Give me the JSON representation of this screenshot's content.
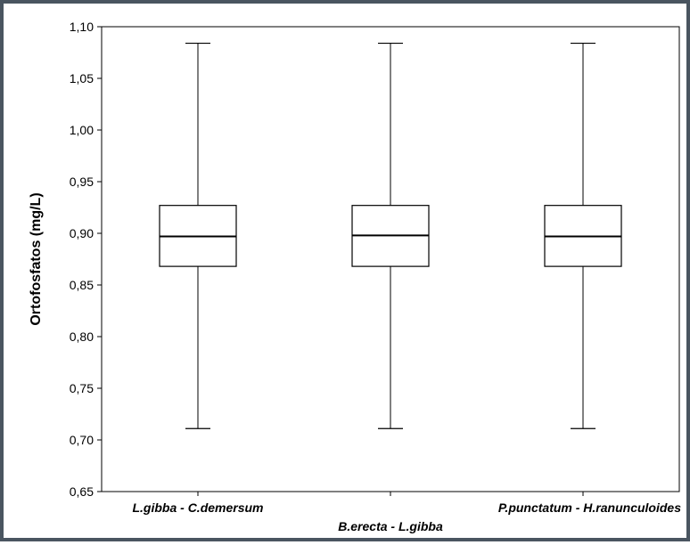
{
  "colors": {
    "frame_border": "#4a5560",
    "plot_line": "#000000",
    "background": "#ffffff"
  },
  "chart_data": {
    "type": "box",
    "title": "",
    "xlabel": "",
    "ylabel": "Ortofosfatos (mg/L)",
    "ylim": [
      0.65,
      1.1
    ],
    "yticks": [
      "0,65",
      "0,70",
      "0,75",
      "0,80",
      "0,85",
      "0,90",
      "0,95",
      "1,00",
      "1,05",
      "1,10"
    ],
    "ytick_values": [
      0.65,
      0.7,
      0.75,
      0.8,
      0.85,
      0.9,
      0.95,
      1.0,
      1.05,
      1.1
    ],
    "categories": [
      "L.gibba - C.demersum",
      "B.erecta - L.gibba",
      "P.punctatum - H.ranunculoides"
    ],
    "category_label_rows": [
      "top",
      "bottom",
      "top"
    ],
    "boxes": [
      {
        "min": 0.711,
        "q1": 0.868,
        "median": 0.897,
        "q3": 0.927,
        "max": 1.084
      },
      {
        "min": 0.711,
        "q1": 0.868,
        "median": 0.898,
        "q3": 0.927,
        "max": 1.084
      },
      {
        "min": 0.711,
        "q1": 0.868,
        "median": 0.897,
        "q3": 0.927,
        "max": 1.084
      }
    ],
    "grid": false,
    "legend": "none"
  }
}
